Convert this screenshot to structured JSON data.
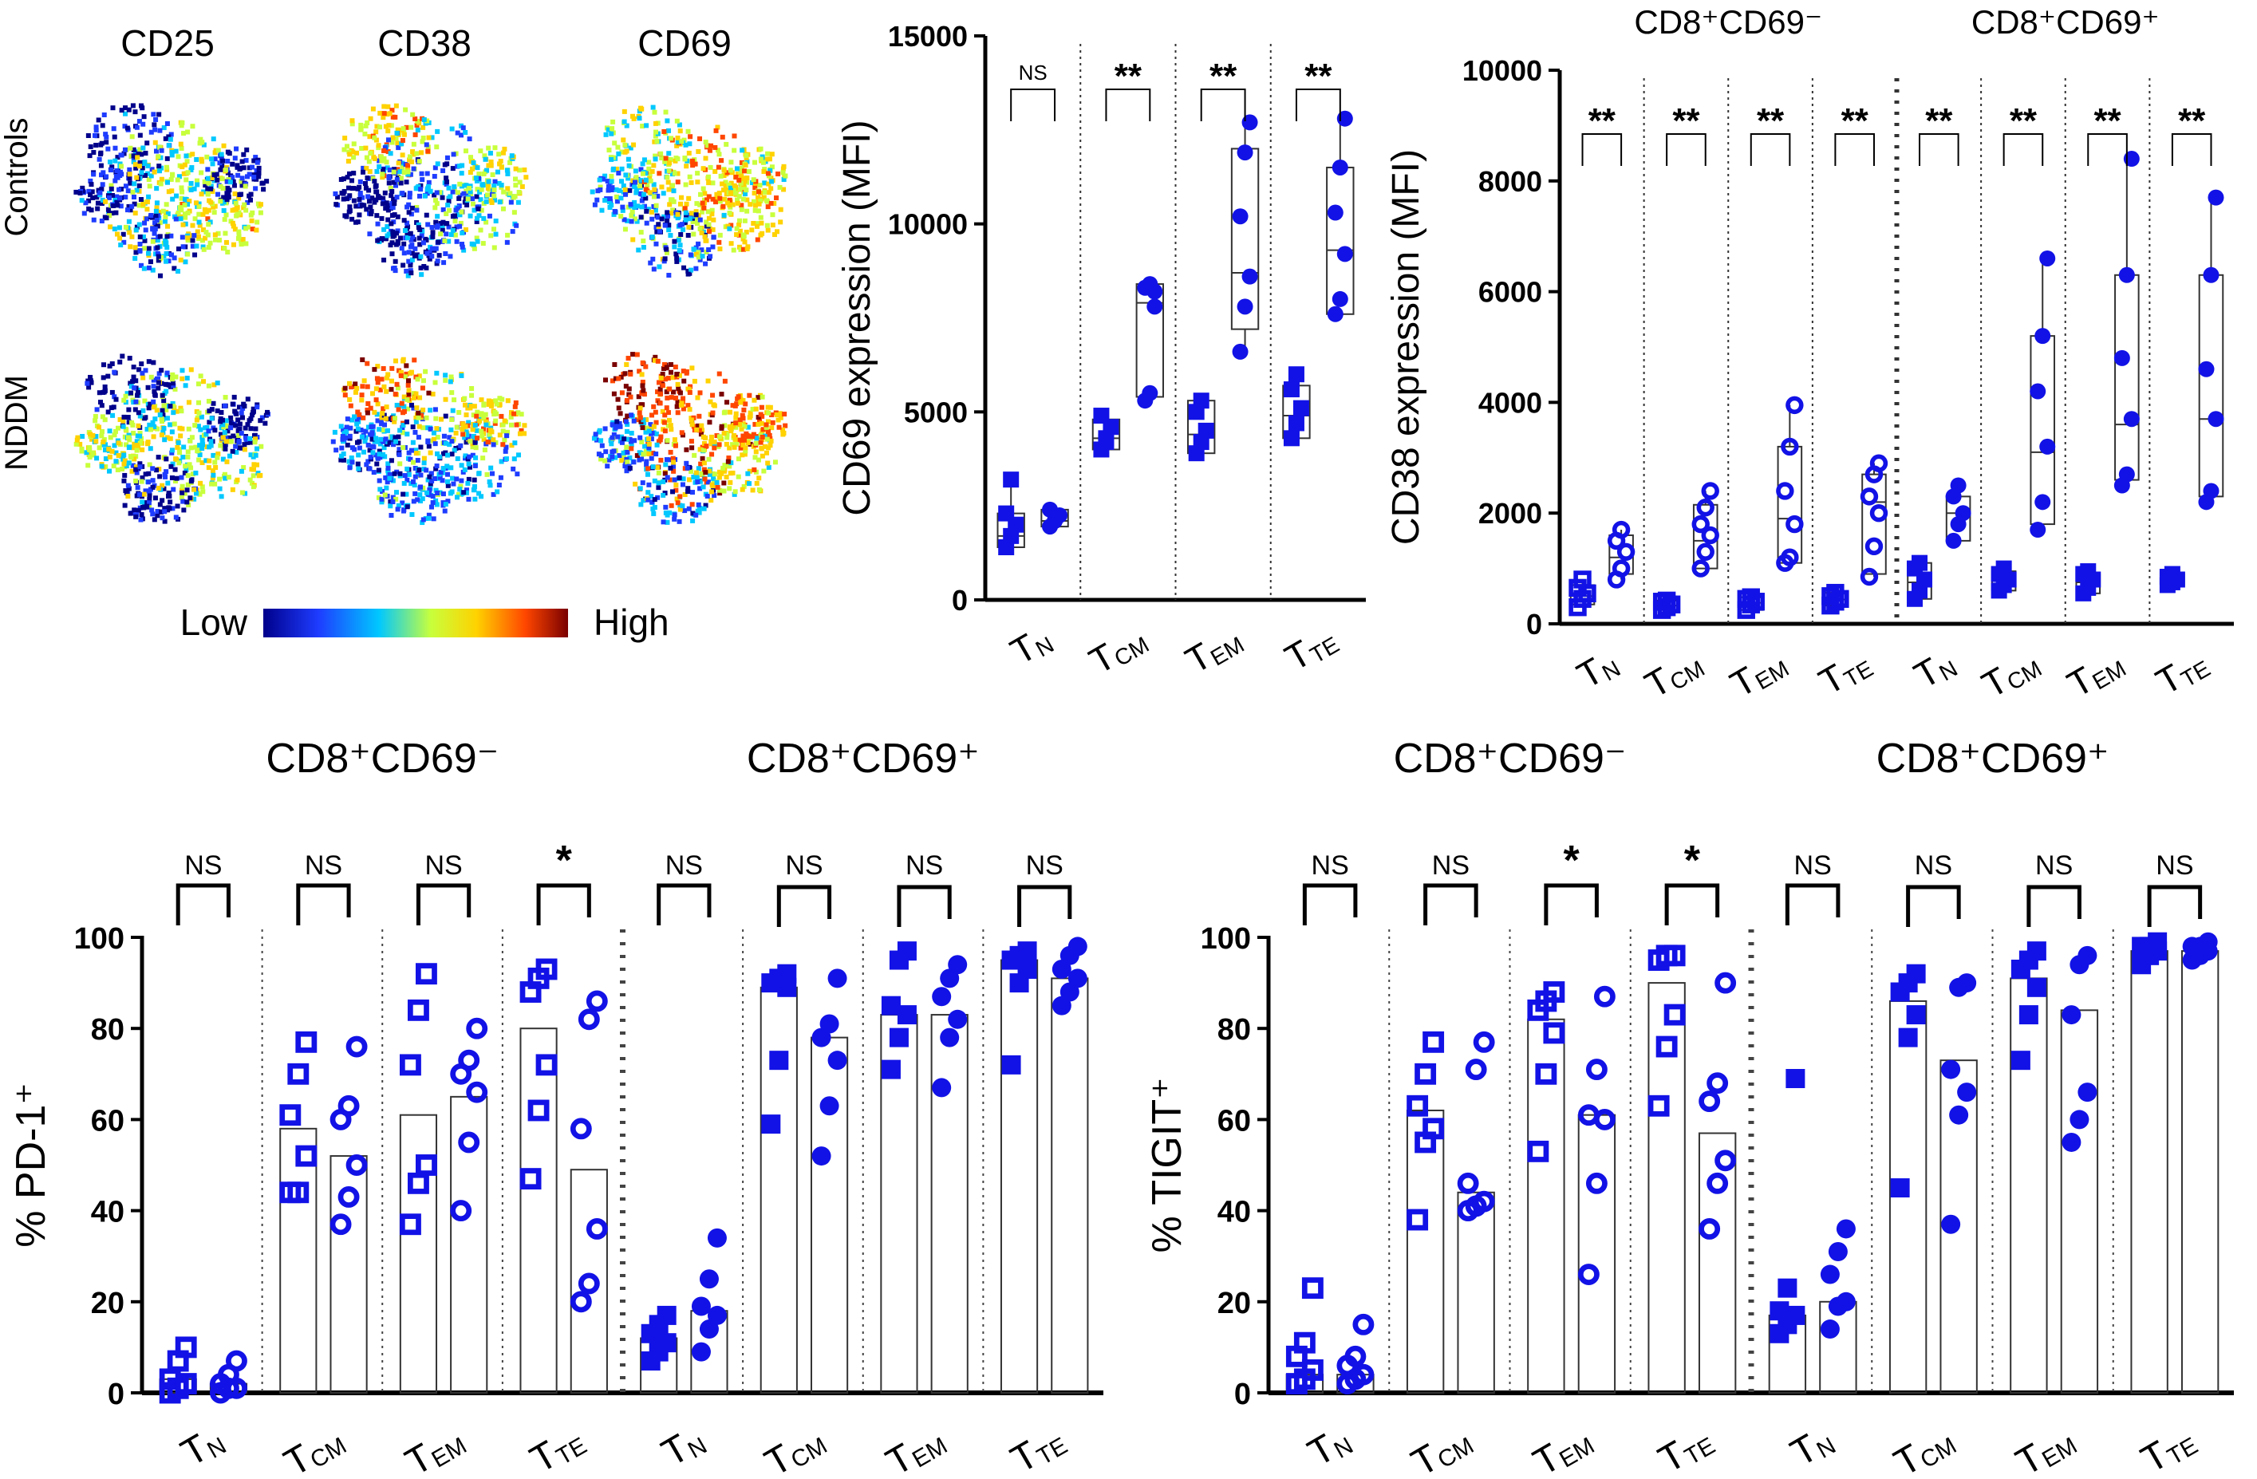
{
  "figure": {
    "tsne": {
      "columns": [
        "CD25",
        "CD38",
        "CD69"
      ],
      "rows": [
        "Controls",
        "NDDM"
      ],
      "colorbar": {
        "low": "Low",
        "high": "High",
        "colors": [
          "#00008b",
          "#1e3cff",
          "#00c8ff",
          "#c8ff3c",
          "#ffd200",
          "#ff4600",
          "#7a0000"
        ]
      }
    },
    "colors": {
      "blue": "#1212e6",
      "sig_line": "#000000"
    }
  },
  "chart_data": [
    {
      "id": "cd69",
      "type": "box",
      "ylabel": "CD69 expression (MFI)",
      "ylim": [
        0,
        15000
      ],
      "yticks": [
        "0",
        "5000",
        "10000",
        "15000"
      ],
      "pairs": [
        {
          "sub": "N",
          "sig": "NS",
          "a": {
            "marker": "square-filled",
            "q1": 1400,
            "median": 1700,
            "q3": 2300,
            "points": [
              1400,
              1700,
              2000,
              2300,
              3200
            ]
          },
          "b": {
            "marker": "circle-filled",
            "q1": 1950,
            "median": 2100,
            "q3": 2400,
            "points": [
              1950,
              2100,
              2250,
              2400,
              2100
            ]
          }
        },
        {
          "sub": "CM",
          "sig": "**",
          "a": {
            "marker": "square-filled",
            "q1": 4000,
            "median": 4300,
            "q3": 4800,
            "points": [
              4000,
              4300,
              4600,
              4900,
              4200
            ]
          },
          "b": {
            "marker": "circle-filled",
            "q1": 5400,
            "median": 7900,
            "q3": 8400,
            "points": [
              5300,
              5500,
              7800,
              8300,
              8400,
              8200
            ]
          }
        },
        {
          "sub": "EM",
          "sig": "**",
          "a": {
            "marker": "square-filled",
            "q1": 3900,
            "median": 4400,
            "q3": 5300,
            "points": [
              3900,
              4200,
              4500,
              5000,
              5300
            ]
          },
          "b": {
            "marker": "circle-filled",
            "q1": 7200,
            "median": 8700,
            "q3": 12000,
            "points": [
              6600,
              7800,
              8600,
              10200,
              11900,
              12700
            ]
          }
        },
        {
          "sub": "TE",
          "sig": "**",
          "a": {
            "marker": "square-filled",
            "q1": 4300,
            "median": 4900,
            "q3": 5700,
            "points": [
              4300,
              4700,
              5100,
              5600,
              6000
            ]
          },
          "b": {
            "marker": "circle-filled",
            "q1": 7600,
            "median": 9300,
            "q3": 11500,
            "points": [
              7600,
              8000,
              9200,
              10300,
              11500,
              12800
            ]
          }
        }
      ]
    },
    {
      "id": "cd38",
      "type": "box",
      "ylabel": "CD38 expression (MFI)",
      "ylim": [
        0,
        10000
      ],
      "yticks": [
        "0",
        "2000",
        "4000",
        "6000",
        "8000",
        "10000"
      ],
      "groups": [
        "CD8⁺CD69⁻",
        "CD8⁺CD69⁺"
      ],
      "pairs": [
        {
          "sub": "N",
          "sig": "**",
          "a": {
            "marker": "square-open",
            "q1": 350,
            "median": 500,
            "q3": 700,
            "points": [
              300,
              450,
              550,
              650,
              800
            ]
          },
          "b": {
            "marker": "circle-open",
            "q1": 900,
            "median": 1200,
            "q3": 1600,
            "points": [
              800,
              1000,
              1300,
              1500,
              1700
            ]
          }
        },
        {
          "sub": "CM",
          "sig": "**",
          "a": {
            "marker": "square-open",
            "q1": 250,
            "median": 330,
            "q3": 420,
            "points": [
              250,
              300,
              350,
              400,
              420
            ]
          },
          "b": {
            "marker": "circle-open",
            "q1": 1000,
            "median": 1500,
            "q3": 2150,
            "points": [
              1000,
              1300,
              1600,
              1800,
              2100,
              2400
            ]
          }
        },
        {
          "sub": "EM",
          "sig": "**",
          "a": {
            "marker": "square-open",
            "q1": 250,
            "median": 380,
            "q3": 480,
            "points": [
              250,
              350,
              400,
              450,
              480
            ]
          },
          "b": {
            "marker": "circle-open",
            "q1": 1100,
            "median": 1900,
            "q3": 3200,
            "points": [
              1100,
              1200,
              1800,
              2400,
              3200,
              3950
            ]
          }
        },
        {
          "sub": "TE",
          "sig": "**",
          "a": {
            "marker": "square-open",
            "q1": 330,
            "median": 440,
            "q3": 560,
            "points": [
              330,
              400,
              450,
              500,
              560
            ]
          },
          "b": {
            "marker": "circle-open",
            "q1": 900,
            "median": 2200,
            "q3": 2700,
            "points": [
              850,
              1400,
              2000,
              2300,
              2700,
              2900
            ]
          }
        },
        {
          "sub": "N",
          "sig": "**",
          "a": {
            "marker": "square-filled",
            "q1": 450,
            "median": 750,
            "q3": 1100,
            "points": [
              450,
              600,
              800,
              1000,
              1100
            ]
          },
          "b": {
            "marker": "circle-filled",
            "q1": 1500,
            "median": 2000,
            "q3": 2300,
            "points": [
              1500,
              1800,
              2000,
              2300,
              2500
            ]
          }
        },
        {
          "sub": "CM",
          "sig": "**",
          "a": {
            "marker": "square-filled",
            "q1": 600,
            "median": 780,
            "q3": 950,
            "points": [
              600,
              700,
              800,
              900,
              1000
            ]
          },
          "b": {
            "marker": "circle-filled",
            "q1": 1800,
            "median": 3100,
            "q3": 5200,
            "points": [
              1700,
              2200,
              3200,
              4200,
              5200,
              6600
            ]
          }
        },
        {
          "sub": "EM",
          "sig": "**",
          "a": {
            "marker": "square-filled",
            "q1": 550,
            "median": 750,
            "q3": 900,
            "points": [
              550,
              650,
              800,
              900,
              950
            ]
          },
          "b": {
            "marker": "circle-filled",
            "q1": 2600,
            "median": 3600,
            "q3": 6300,
            "points": [
              2500,
              2700,
              3700,
              4800,
              6300,
              8400
            ]
          }
        },
        {
          "sub": "TE",
          "sig": "**",
          "a": {
            "marker": "square-filled",
            "q1": 700,
            "median": 800,
            "q3": 900,
            "points": [
              700,
              750,
              800,
              850,
              900
            ]
          },
          "b": {
            "marker": "circle-filled",
            "q1": 2300,
            "median": 3700,
            "q3": 6300,
            "points": [
              2200,
              2400,
              3700,
              4600,
              6300,
              7700
            ]
          }
        }
      ]
    },
    {
      "id": "pd1",
      "type": "bar-scatter",
      "ylabel": "% PD-1⁺",
      "ylim": [
        0,
        100
      ],
      "yticks": [
        "0",
        "20",
        "40",
        "60",
        "80",
        "100"
      ],
      "groups": [
        "CD8⁺CD69⁻",
        "CD8⁺CD69⁺"
      ],
      "pairs": [
        {
          "sub": "N",
          "sig": "NS",
          "a": {
            "marker": "square-open",
            "mean": 3,
            "points": [
              0,
              1,
              2,
              3,
              7,
              10
            ]
          },
          "b": {
            "marker": "circle-open",
            "mean": 2,
            "points": [
              0,
              1,
              1,
              2,
              4,
              7
            ]
          }
        },
        {
          "sub": "CM",
          "sig": "NS",
          "a": {
            "marker": "square-open",
            "mean": 58,
            "points": [
              44,
              44,
              52,
              61,
              70,
              77
            ]
          },
          "b": {
            "marker": "circle-open",
            "mean": 52,
            "points": [
              37,
              43,
              50,
              60,
              63,
              76
            ]
          }
        },
        {
          "sub": "EM",
          "sig": "NS",
          "a": {
            "marker": "square-open",
            "mean": 61,
            "points": [
              37,
              46,
              50,
              72,
              84,
              92
            ]
          },
          "b": {
            "marker": "circle-open",
            "mean": 65,
            "points": [
              40,
              55,
              66,
              70,
              73,
              80
            ]
          }
        },
        {
          "sub": "TE",
          "sig": "*",
          "a": {
            "marker": "square-open",
            "mean": 80,
            "points": [
              47,
              62,
              72,
              88,
              91,
              93
            ]
          },
          "b": {
            "marker": "circle-open",
            "mean": 49,
            "points": [
              20,
              24,
              36,
              58,
              82,
              86
            ]
          }
        },
        {
          "sub": "N",
          "sig": "NS",
          "a": {
            "marker": "square-filled",
            "mean": 12,
            "points": [
              7,
              9,
              11,
              13,
              15,
              17
            ]
          },
          "b": {
            "marker": "circle-filled",
            "mean": 18,
            "points": [
              9,
              14,
              17,
              19,
              25,
              34
            ]
          }
        },
        {
          "sub": "CM",
          "sig": "NS",
          "a": {
            "marker": "square-filled",
            "mean": 89,
            "points": [
              59,
              73,
              89,
              90,
              91,
              92
            ]
          },
          "b": {
            "marker": "circle-filled",
            "mean": 78,
            "points": [
              52,
              63,
              73,
              78,
              81,
              91
            ]
          }
        },
        {
          "sub": "EM",
          "sig": "NS",
          "a": {
            "marker": "square-filled",
            "mean": 83,
            "points": [
              71,
              78,
              83,
              85,
              95,
              97
            ]
          },
          "b": {
            "marker": "circle-filled",
            "mean": 83,
            "points": [
              67,
              78,
              82,
              87,
              91,
              94
            ]
          }
        },
        {
          "sub": "TE",
          "sig": "NS",
          "a": {
            "marker": "square-filled",
            "mean": 95,
            "points": [
              72,
              90,
              93,
              95,
              96,
              97
            ]
          },
          "b": {
            "marker": "circle-filled",
            "mean": 91,
            "points": [
              85,
              88,
              91,
              93,
              96,
              98
            ]
          }
        }
      ]
    },
    {
      "id": "tigit",
      "type": "bar-scatter",
      "ylabel": "% TIGIT⁺",
      "ylim": [
        0,
        100
      ],
      "yticks": [
        "0",
        "20",
        "40",
        "60",
        "80",
        "100"
      ],
      "groups": [
        "CD8⁺CD69⁻",
        "CD8⁺CD69⁺"
      ],
      "pairs": [
        {
          "sub": "N",
          "sig": "NS",
          "a": {
            "marker": "square-open",
            "mean": 4,
            "points": [
              2,
              3,
              5,
              8,
              11,
              23
            ]
          },
          "b": {
            "marker": "circle-open",
            "mean": 4,
            "points": [
              2,
              3,
              4,
              6,
              8,
              15
            ]
          }
        },
        {
          "sub": "CM",
          "sig": "NS",
          "a": {
            "marker": "square-open",
            "mean": 62,
            "points": [
              38,
              55,
              58,
              63,
              70,
              77
            ]
          },
          "b": {
            "marker": "circle-open",
            "mean": 44,
            "points": [
              40,
              41,
              42,
              46,
              71,
              77
            ]
          }
        },
        {
          "sub": "EM",
          "sig": "*",
          "a": {
            "marker": "square-open",
            "mean": 82,
            "points": [
              53,
              70,
              79,
              84,
              86,
              88
            ]
          },
          "b": {
            "marker": "circle-open",
            "mean": 61,
            "points": [
              26,
              46,
              60,
              61,
              71,
              87
            ]
          }
        },
        {
          "sub": "TE",
          "sig": "*",
          "a": {
            "marker": "square-open",
            "mean": 90,
            "points": [
              63,
              76,
              83,
              95,
              96,
              96
            ]
          },
          "b": {
            "marker": "circle-open",
            "mean": 57,
            "points": [
              36,
              46,
              51,
              64,
              68,
              90
            ]
          }
        },
        {
          "sub": "N",
          "sig": "NS",
          "a": {
            "marker": "square-filled",
            "mean": 17,
            "points": [
              13,
              15,
              17,
              18,
              23,
              69
            ]
          },
          "b": {
            "marker": "circle-filled",
            "mean": 20,
            "points": [
              14,
              19,
              20,
              26,
              31,
              36
            ]
          }
        },
        {
          "sub": "CM",
          "sig": "NS",
          "a": {
            "marker": "square-filled",
            "mean": 86,
            "points": [
              45,
              78,
              83,
              88,
              90,
              92
            ]
          },
          "b": {
            "marker": "circle-filled",
            "mean": 73,
            "points": [
              37,
              61,
              66,
              71,
              89,
              90
            ]
          }
        },
        {
          "sub": "EM",
          "sig": "NS",
          "a": {
            "marker": "square-filled",
            "mean": 91,
            "points": [
              73,
              83,
              89,
              93,
              95,
              97
            ]
          },
          "b": {
            "marker": "circle-filled",
            "mean": 84,
            "points": [
              55,
              60,
              66,
              83,
              94,
              96
            ]
          }
        },
        {
          "sub": "TE",
          "sig": "NS",
          "a": {
            "marker": "square-filled",
            "mean": 97,
            "points": [
              94,
              96,
              97,
              98,
              98,
              99
            ]
          },
          "b": {
            "marker": "circle-filled",
            "mean": 97,
            "points": [
              95,
              96,
              97,
              98,
              98,
              99
            ]
          }
        }
      ]
    }
  ]
}
